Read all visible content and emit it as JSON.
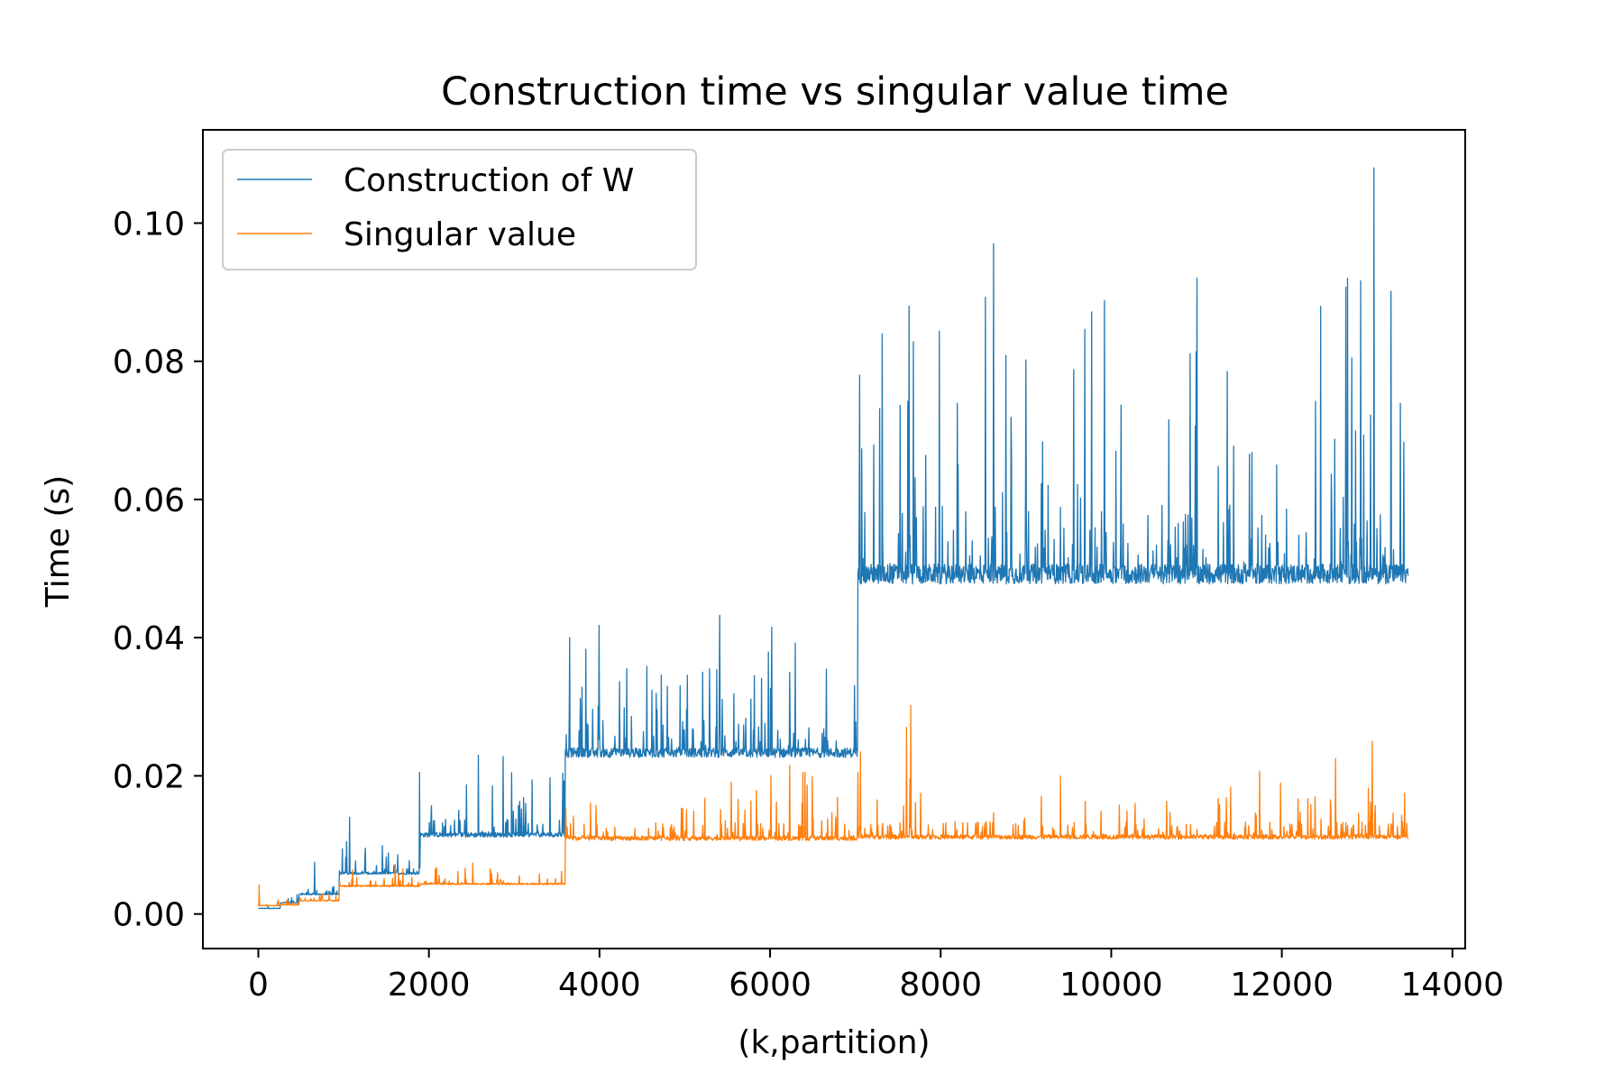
{
  "chart_data": {
    "type": "line",
    "title": "Construction time vs singular value time",
    "xlabel": "(k,partition)",
    "ylabel": "Time (s)",
    "xlim": [
      -650,
      14150
    ],
    "ylim": [
      -0.005,
      0.1135
    ],
    "xticks": [
      0,
      2000,
      4000,
      6000,
      8000,
      10000,
      12000,
      14000
    ],
    "xtick_labels": [
      "0",
      "2000",
      "4000",
      "6000",
      "8000",
      "10000",
      "12000",
      "14000"
    ],
    "yticks": [
      0.0,
      0.02,
      0.04,
      0.06,
      0.08,
      0.1
    ],
    "ytick_labels": [
      "0.00",
      "0.02",
      "0.04",
      "0.06",
      "0.08",
      "0.10"
    ],
    "grid": false,
    "legend_position": "top-left",
    "x_range": [
      0,
      13480
    ],
    "series": [
      {
        "name": "Construction of W",
        "color": "#1f77b4",
        "segments": [
          {
            "x": [
              0,
              260
            ],
            "base": 0.0008
          },
          {
            "x": [
              260,
              480
            ],
            "base": 0.0016
          },
          {
            "x": [
              480,
              950
            ],
            "base": 0.0028
          },
          {
            "x": [
              950,
              1900
            ],
            "base": 0.0058
          },
          {
            "x": [
              1900,
              3600
            ],
            "base": 0.0113
          },
          {
            "x": [
              3600,
              7030
            ],
            "base": 0.023
          },
          {
            "x": [
              7030,
              13480
            ],
            "base": 0.0485
          }
        ],
        "peaks": [
          {
            "x": 660,
            "y": 0.0075
          },
          {
            "x": 1070,
            "y": 0.014
          },
          {
            "x": 1890,
            "y": 0.0205
          },
          {
            "x": 2580,
            "y": 0.023
          },
          {
            "x": 2870,
            "y": 0.0228
          },
          {
            "x": 3650,
            "y": 0.04
          },
          {
            "x": 4320,
            "y": 0.0355
          },
          {
            "x": 5210,
            "y": 0.035
          },
          {
            "x": 6020,
            "y": 0.0415
          },
          {
            "x": 7050,
            "y": 0.078
          },
          {
            "x": 7630,
            "y": 0.088
          },
          {
            "x": 7680,
            "y": 0.0828
          },
          {
            "x": 8620,
            "y": 0.097
          },
          {
            "x": 9560,
            "y": 0.0788
          },
          {
            "x": 11360,
            "y": 0.0785
          },
          {
            "x": 12770,
            "y": 0.092
          },
          {
            "x": 12820,
            "y": 0.0805
          },
          {
            "x": 13080,
            "y": 0.108
          },
          {
            "x": 13430,
            "y": 0.0683
          }
        ]
      },
      {
        "name": "Singular value",
        "color": "#ff7f0e",
        "segments": [
          {
            "x": [
              0,
              260
            ],
            "base": 0.0012
          },
          {
            "x": [
              260,
              480
            ],
            "base": 0.0013
          },
          {
            "x": [
              480,
              950
            ],
            "base": 0.0019
          },
          {
            "x": [
              950,
              1900
            ],
            "base": 0.004
          },
          {
            "x": [
              1900,
              3600
            ],
            "base": 0.0043
          },
          {
            "x": [
              3600,
              7030
            ],
            "base": 0.0108
          },
          {
            "x": [
              7030,
              13480
            ],
            "base": 0.011
          }
        ],
        "peaks": [
          {
            "x": 10,
            "y": 0.0042
          },
          {
            "x": 6230,
            "y": 0.0215
          },
          {
            "x": 6410,
            "y": 0.0205
          },
          {
            "x": 7030,
            "y": 0.0205
          },
          {
            "x": 7060,
            "y": 0.0235
          },
          {
            "x": 7600,
            "y": 0.027
          },
          {
            "x": 7650,
            "y": 0.0302
          },
          {
            "x": 12630,
            "y": 0.0225
          },
          {
            "x": 13060,
            "y": 0.025
          }
        ]
      }
    ]
  }
}
